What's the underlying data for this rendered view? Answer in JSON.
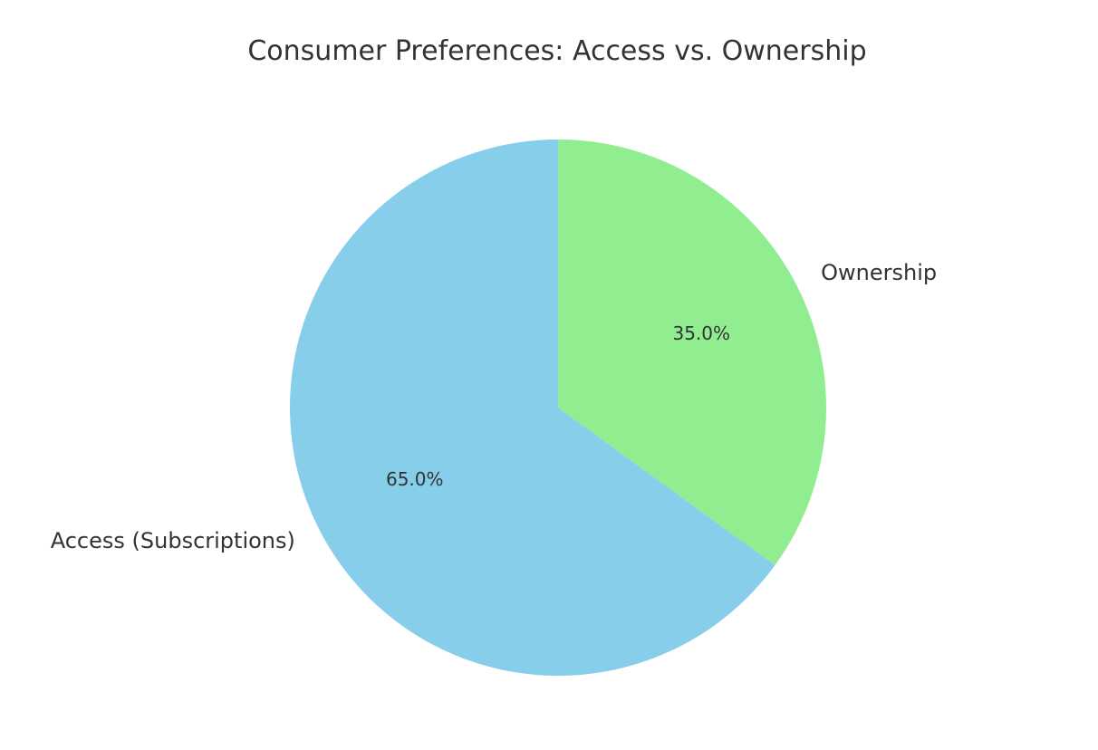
{
  "chart_data": {
    "type": "pie",
    "title": "Consumer Preferences: Access vs. Ownership",
    "start_angle_deg": 90,
    "direction": "clockwise",
    "slices": [
      {
        "label": "Ownership",
        "value": 35.0,
        "pct_label": "35.0%",
        "color": "#90EE90"
      },
      {
        "label": "Access (Subscriptions)",
        "value": 65.0,
        "pct_label": "65.0%",
        "color": "#87CEEB"
      }
    ]
  }
}
